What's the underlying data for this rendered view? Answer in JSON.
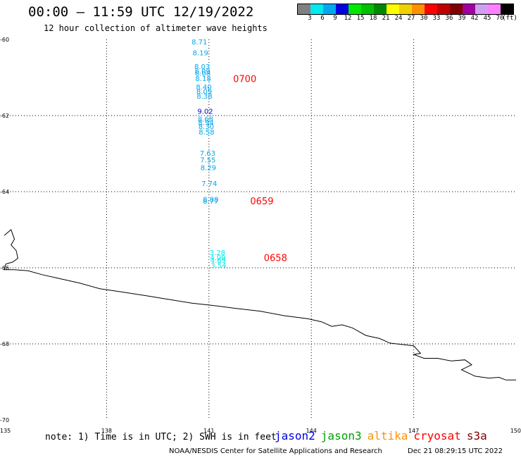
{
  "header": {
    "title": "00:00 – 11:59 UTC 12/19/2022",
    "subtitle": "12 hour collection of altimeter wave heights"
  },
  "legend": {
    "swatches": [
      {
        "color": "#808080",
        "label": "3"
      },
      {
        "color": "#00e8f0",
        "label": "6"
      },
      {
        "color": "#00a8f0",
        "label": "9"
      },
      {
        "color": "#0000e0",
        "label": "12"
      },
      {
        "color": "#00e800",
        "label": "15"
      },
      {
        "color": "#00c000",
        "label": "18"
      },
      {
        "color": "#008800",
        "label": "21"
      },
      {
        "color": "#ffff00",
        "label": "24"
      },
      {
        "color": "#f0d000",
        "label": "27"
      },
      {
        "color": "#ff9000",
        "label": "30"
      },
      {
        "color": "#ff0000",
        "label": "33"
      },
      {
        "color": "#c00000",
        "label": "36"
      },
      {
        "color": "#800000",
        "label": "39"
      },
      {
        "color": "#a000a0",
        "label": "42"
      },
      {
        "color": "#d0a0f0",
        "label": "45"
      },
      {
        "color": "#ff80ff",
        "label": "70"
      },
      {
        "color": "#000000",
        "label": ""
      }
    ],
    "unit": "(ft)"
  },
  "map": {
    "lat_range": [
      -70,
      -60
    ],
    "lon_range": [
      135,
      150
    ],
    "lat_ticks": [
      "-60",
      "-62",
      "-64",
      "-66",
      "-68",
      "-70"
    ],
    "lon_ticks": [
      "135",
      "138",
      "141",
      "144",
      "147",
      "150"
    ],
    "grid_lons": [
      138,
      141,
      144,
      147
    ],
    "grid_lats": [
      -62,
      -64,
      -66,
      -68
    ],
    "coastline": [
      [
        135.0,
        -65.15
      ],
      [
        135.2,
        -65.0
      ],
      [
        135.3,
        -65.25
      ],
      [
        135.2,
        -65.4
      ],
      [
        135.35,
        -65.55
      ],
      [
        135.4,
        -65.75
      ],
      [
        135.25,
        -65.85
      ],
      [
        135.05,
        -65.9
      ],
      [
        135.0,
        -66.05
      ],
      [
        135.3,
        -66.05
      ],
      [
        135.7,
        -66.08
      ],
      [
        136.1,
        -66.18
      ],
      [
        136.6,
        -66.28
      ],
      [
        137.2,
        -66.4
      ],
      [
        137.8,
        -66.55
      ],
      [
        138.4,
        -66.63
      ],
      [
        139.2,
        -66.74
      ],
      [
        139.8,
        -66.83
      ],
      [
        140.5,
        -66.93
      ],
      [
        141.2,
        -67.0
      ],
      [
        141.8,
        -67.07
      ],
      [
        142.5,
        -67.14
      ],
      [
        143.2,
        -67.26
      ],
      [
        143.9,
        -67.34
      ],
      [
        144.3,
        -67.42
      ],
      [
        144.6,
        -67.54
      ],
      [
        144.9,
        -67.5
      ],
      [
        145.2,
        -67.58
      ],
      [
        145.6,
        -67.78
      ],
      [
        146.0,
        -67.86
      ],
      [
        146.3,
        -67.98
      ],
      [
        146.7,
        -68.02
      ],
      [
        147.0,
        -68.05
      ],
      [
        147.2,
        -68.25
      ],
      [
        147.0,
        -68.28
      ],
      [
        147.3,
        -68.38
      ],
      [
        147.7,
        -68.38
      ],
      [
        148.1,
        -68.45
      ],
      [
        148.5,
        -68.42
      ],
      [
        148.7,
        -68.55
      ],
      [
        148.4,
        -68.68
      ],
      [
        148.8,
        -68.85
      ],
      [
        149.2,
        -68.9
      ],
      [
        149.5,
        -68.88
      ],
      [
        149.7,
        -68.95
      ],
      [
        150.0,
        -68.95
      ]
    ],
    "observations": [
      {
        "lon": 140.72,
        "lat": -60.06,
        "value": "8.71",
        "color": "#00a8f0"
      },
      {
        "lon": 140.75,
        "lat": -60.34,
        "value": "8.19",
        "color": "#00a8f0"
      },
      {
        "lon": 140.8,
        "lat": -60.7,
        "value": "8.03",
        "color": "#00a8f0"
      },
      {
        "lon": 140.81,
        "lat": -60.82,
        "value": "8.09",
        "color": "#00a8f0"
      },
      {
        "lon": 140.82,
        "lat": -60.88,
        "value": "8.08",
        "color": "#00a8f0"
      },
      {
        "lon": 140.83,
        "lat": -61.02,
        "value": "8.18",
        "color": "#00a8f0"
      },
      {
        "lon": 140.85,
        "lat": -61.24,
        "value": "8.40",
        "color": "#00a8f0"
      },
      {
        "lon": 140.86,
        "lat": -61.36,
        "value": "8.09",
        "color": "#00a8f0"
      },
      {
        "lon": 140.87,
        "lat": -61.48,
        "value": "8.38",
        "color": "#00a8f0"
      },
      {
        "lon": 140.89,
        "lat": -61.88,
        "value": "9.02",
        "color": "#0000e0"
      },
      {
        "lon": 140.9,
        "lat": -62.08,
        "value": "8.68",
        "color": "#00a8f0"
      },
      {
        "lon": 140.91,
        "lat": -62.18,
        "value": "8.94",
        "color": "#00a8f0"
      },
      {
        "lon": 140.92,
        "lat": -62.28,
        "value": "8.30",
        "color": "#00a8f0"
      },
      {
        "lon": 140.93,
        "lat": -62.43,
        "value": "8.58",
        "color": "#00a8f0"
      },
      {
        "lon": 140.96,
        "lat": -62.98,
        "value": "7.63",
        "color": "#00a8f0"
      },
      {
        "lon": 140.97,
        "lat": -63.16,
        "value": "7.55",
        "color": "#00a8f0"
      },
      {
        "lon": 140.98,
        "lat": -63.36,
        "value": "8.29",
        "color": "#00a8f0"
      },
      {
        "lon": 141.01,
        "lat": -63.78,
        "value": "7.74",
        "color": "#00a8f0"
      },
      {
        "lon": 141.05,
        "lat": -64.19,
        "value": "8.88",
        "color": "#00a8f0"
      },
      {
        "lon": 141.05,
        "lat": -64.24,
        "value": "8.77",
        "color": "#00a8f0"
      },
      {
        "lon": 141.25,
        "lat": -65.59,
        "value": "3.28",
        "color": "#00e8f0"
      },
      {
        "lon": 141.26,
        "lat": -65.72,
        "value": "4.09",
        "color": "#00e8f0"
      },
      {
        "lon": 141.27,
        "lat": -65.8,
        "value": "4.69",
        "color": "#00e8f0"
      },
      {
        "lon": 141.28,
        "lat": -65.93,
        "value": "3.54",
        "color": "#00e8f0"
      }
    ],
    "time_labels": [
      {
        "lon": 142.05,
        "lat": -61.03,
        "text": "0700",
        "color": "#ff0000"
      },
      {
        "lon": 142.55,
        "lat": -64.24,
        "text": "0659",
        "color": "#ff0000"
      },
      {
        "lon": 142.95,
        "lat": -65.73,
        "text": "0658",
        "color": "#ff0000"
      }
    ]
  },
  "footer": {
    "note": "note: 1) Time is in UTC; 2) SWH is in feet",
    "satellites": [
      {
        "name": "jason2",
        "color": "#0000e0"
      },
      {
        "name": "jason3",
        "color": "#00a000"
      },
      {
        "name": "altika",
        "color": "#ff9000"
      },
      {
        "name": "cryosat",
        "color": "#ff0000"
      },
      {
        "name": "s3a",
        "color": "#800000"
      }
    ],
    "credit": "NOAA/NESDIS Center for Satellite Applications and Research",
    "timestamp": "Dec 21 08:29:15 UTC 2022"
  }
}
